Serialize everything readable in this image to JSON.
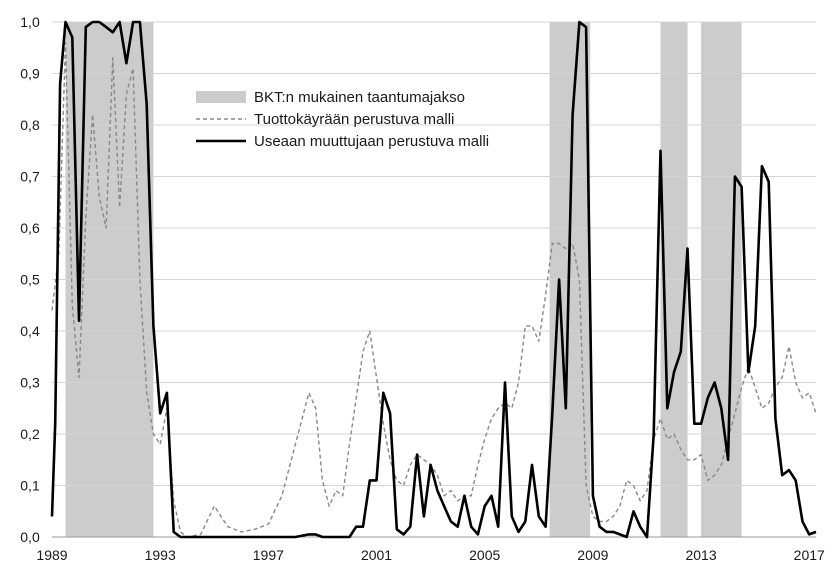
{
  "chart_data": {
    "type": "line",
    "title": "",
    "xlabel": "",
    "ylabel": "",
    "xlim": [
      1989,
      2017.25
    ],
    "ylim": [
      0,
      1
    ],
    "x_ticks": [
      1989,
      1993,
      1997,
      2001,
      2005,
      2009,
      2013,
      2017
    ],
    "y_ticks": [
      0,
      0.1,
      0.2,
      0.3,
      0.4,
      0.5,
      0.6,
      0.7,
      0.8,
      0.9,
      1.0
    ],
    "y_tick_labels": [
      "0,0",
      "0,1",
      "0,2",
      "0,3",
      "0,4",
      "0,5",
      "0,6",
      "0,7",
      "0,8",
      "0,9",
      "1,0"
    ],
    "grid": "horizontal",
    "legend_position": "upper-center",
    "recessions": {
      "name": "BKT:n mukainen taantumajakso",
      "color": "#cccccc",
      "periods": [
        [
          1989.5,
          1992.75
        ],
        [
          2007.4,
          2008.9
        ],
        [
          2011.5,
          2012.5
        ],
        [
          2013.0,
          2014.5
        ]
      ]
    },
    "series": [
      {
        "name": "Tuottokäyrään perustuva malli",
        "color": "#888888",
        "style": "dashed",
        "points": [
          [
            1989.0,
            0.44
          ],
          [
            1989.25,
            0.55
          ],
          [
            1989.5,
            0.96
          ],
          [
            1989.75,
            0.45
          ],
          [
            1990.0,
            0.31
          ],
          [
            1990.25,
            0.62
          ],
          [
            1990.5,
            0.82
          ],
          [
            1990.75,
            0.66
          ],
          [
            1991.0,
            0.6
          ],
          [
            1991.25,
            0.93
          ],
          [
            1991.5,
            0.64
          ],
          [
            1991.75,
            0.86
          ],
          [
            1992.0,
            0.91
          ],
          [
            1992.25,
            0.5
          ],
          [
            1992.5,
            0.28
          ],
          [
            1992.75,
            0.2
          ],
          [
            1993.0,
            0.18
          ],
          [
            1993.25,
            0.25
          ],
          [
            1993.5,
            0.07
          ],
          [
            1993.75,
            0.01
          ],
          [
            1994.0,
            0.0
          ],
          [
            1994.5,
            0.005
          ],
          [
            1995.0,
            0.06
          ],
          [
            1995.5,
            0.02
          ],
          [
            1996.0,
            0.01
          ],
          [
            1996.5,
            0.015
          ],
          [
            1997.0,
            0.025
          ],
          [
            1997.5,
            0.08
          ],
          [
            1998.0,
            0.18
          ],
          [
            1998.5,
            0.28
          ],
          [
            1998.75,
            0.25
          ],
          [
            1999.0,
            0.11
          ],
          [
            1999.25,
            0.06
          ],
          [
            1999.5,
            0.09
          ],
          [
            1999.75,
            0.08
          ],
          [
            2000.0,
            0.18
          ],
          [
            2000.5,
            0.36
          ],
          [
            2000.75,
            0.4
          ],
          [
            2001.0,
            0.31
          ],
          [
            2001.25,
            0.22
          ],
          [
            2001.5,
            0.15
          ],
          [
            2001.75,
            0.11
          ],
          [
            2002.0,
            0.1
          ],
          [
            2002.25,
            0.14
          ],
          [
            2002.5,
            0.16
          ],
          [
            2002.75,
            0.15
          ],
          [
            2003.0,
            0.14
          ],
          [
            2003.25,
            0.12
          ],
          [
            2003.5,
            0.08
          ],
          [
            2003.75,
            0.09
          ],
          [
            2004.0,
            0.07
          ],
          [
            2004.25,
            0.08
          ],
          [
            2004.5,
            0.08
          ],
          [
            2004.75,
            0.14
          ],
          [
            2005.0,
            0.19
          ],
          [
            2005.25,
            0.23
          ],
          [
            2005.5,
            0.25
          ],
          [
            2005.75,
            0.26
          ],
          [
            2006.0,
            0.25
          ],
          [
            2006.25,
            0.3
          ],
          [
            2006.5,
            0.41
          ],
          [
            2006.75,
            0.41
          ],
          [
            2007.0,
            0.38
          ],
          [
            2007.25,
            0.47
          ],
          [
            2007.5,
            0.57
          ],
          [
            2007.75,
            0.57
          ],
          [
            2008.0,
            0.56
          ],
          [
            2008.25,
            0.57
          ],
          [
            2008.5,
            0.5
          ],
          [
            2008.75,
            0.1
          ],
          [
            2009.0,
            0.04
          ],
          [
            2009.25,
            0.03
          ],
          [
            2009.5,
            0.03
          ],
          [
            2009.75,
            0.04
          ],
          [
            2010.0,
            0.06
          ],
          [
            2010.25,
            0.11
          ],
          [
            2010.5,
            0.1
          ],
          [
            2010.75,
            0.07
          ],
          [
            2011.0,
            0.09
          ],
          [
            2011.25,
            0.19
          ],
          [
            2011.5,
            0.23
          ],
          [
            2011.75,
            0.19
          ],
          [
            2012.0,
            0.2
          ],
          [
            2012.25,
            0.17
          ],
          [
            2012.5,
            0.15
          ],
          [
            2012.75,
            0.15
          ],
          [
            2013.0,
            0.16
          ],
          [
            2013.25,
            0.11
          ],
          [
            2013.5,
            0.12
          ],
          [
            2013.75,
            0.14
          ],
          [
            2014.0,
            0.19
          ],
          [
            2014.25,
            0.24
          ],
          [
            2014.5,
            0.29
          ],
          [
            2014.75,
            0.33
          ],
          [
            2015.0,
            0.29
          ],
          [
            2015.25,
            0.25
          ],
          [
            2015.5,
            0.26
          ],
          [
            2015.75,
            0.29
          ],
          [
            2016.0,
            0.31
          ],
          [
            2016.25,
            0.37
          ],
          [
            2016.5,
            0.3
          ],
          [
            2016.75,
            0.27
          ],
          [
            2017.0,
            0.28
          ],
          [
            2017.25,
            0.24
          ]
        ]
      },
      {
        "name": "Useaan muuttujaan perustuva malli",
        "color": "#000000",
        "style": "solid",
        "points": [
          [
            1989.0,
            0.04
          ],
          [
            1989.12,
            0.22
          ],
          [
            1989.3,
            0.88
          ],
          [
            1989.5,
            1.0
          ],
          [
            1989.75,
            0.97
          ],
          [
            1990.0,
            0.42
          ],
          [
            1990.25,
            0.99
          ],
          [
            1990.5,
            1.0
          ],
          [
            1990.75,
            1.0
          ],
          [
            1991.0,
            0.99
          ],
          [
            1991.25,
            0.98
          ],
          [
            1991.5,
            1.0
          ],
          [
            1991.75,
            0.92
          ],
          [
            1992.0,
            1.0
          ],
          [
            1992.25,
            1.0
          ],
          [
            1992.5,
            0.84
          ],
          [
            1992.75,
            0.41
          ],
          [
            1993.0,
            0.24
          ],
          [
            1993.25,
            0.28
          ],
          [
            1993.5,
            0.01
          ],
          [
            1993.75,
            0.0
          ],
          [
            1994.0,
            0.0
          ],
          [
            1995.0,
            0.0
          ],
          [
            1996.0,
            0.0
          ],
          [
            1997.0,
            0.0
          ],
          [
            1998.0,
            0.0
          ],
          [
            1998.5,
            0.005
          ],
          [
            1998.75,
            0.005
          ],
          [
            1999.0,
            0.0
          ],
          [
            1999.5,
            0.0
          ],
          [
            2000.0,
            0.0
          ],
          [
            2000.25,
            0.02
          ],
          [
            2000.5,
            0.02
          ],
          [
            2000.75,
            0.11
          ],
          [
            2001.0,
            0.11
          ],
          [
            2001.25,
            0.28
          ],
          [
            2001.5,
            0.24
          ],
          [
            2001.75,
            0.015
          ],
          [
            2002.0,
            0.005
          ],
          [
            2002.25,
            0.02
          ],
          [
            2002.5,
            0.16
          ],
          [
            2002.75,
            0.04
          ],
          [
            2003.0,
            0.14
          ],
          [
            2003.25,
            0.09
          ],
          [
            2003.5,
            0.06
          ],
          [
            2003.75,
            0.03
          ],
          [
            2004.0,
            0.02
          ],
          [
            2004.25,
            0.08
          ],
          [
            2004.5,
            0.02
          ],
          [
            2004.75,
            0.005
          ],
          [
            2005.0,
            0.06
          ],
          [
            2005.25,
            0.08
          ],
          [
            2005.5,
            0.02
          ],
          [
            2005.75,
            0.3
          ],
          [
            2006.0,
            0.04
          ],
          [
            2006.25,
            0.01
          ],
          [
            2006.5,
            0.03
          ],
          [
            2006.75,
            0.14
          ],
          [
            2007.0,
            0.04
          ],
          [
            2007.25,
            0.02
          ],
          [
            2007.5,
            0.24
          ],
          [
            2007.75,
            0.5
          ],
          [
            2008.0,
            0.25
          ],
          [
            2008.25,
            0.82
          ],
          [
            2008.5,
            1.0
          ],
          [
            2008.75,
            0.99
          ],
          [
            2009.0,
            0.08
          ],
          [
            2009.25,
            0.02
          ],
          [
            2009.5,
            0.01
          ],
          [
            2009.75,
            0.01
          ],
          [
            2010.0,
            0.005
          ],
          [
            2010.25,
            0.0
          ],
          [
            2010.5,
            0.05
          ],
          [
            2010.75,
            0.02
          ],
          [
            2011.0,
            0.0
          ],
          [
            2011.25,
            0.2
          ],
          [
            2011.5,
            0.75
          ],
          [
            2011.75,
            0.25
          ],
          [
            2012.0,
            0.32
          ],
          [
            2012.25,
            0.36
          ],
          [
            2012.5,
            0.56
          ],
          [
            2012.75,
            0.22
          ],
          [
            2013.0,
            0.22
          ],
          [
            2013.25,
            0.27
          ],
          [
            2013.5,
            0.3
          ],
          [
            2013.75,
            0.25
          ],
          [
            2014.0,
            0.15
          ],
          [
            2014.25,
            0.7
          ],
          [
            2014.5,
            0.68
          ],
          [
            2014.75,
            0.32
          ],
          [
            2015.0,
            0.41
          ],
          [
            2015.25,
            0.72
          ],
          [
            2015.5,
            0.69
          ],
          [
            2015.75,
            0.23
          ],
          [
            2016.0,
            0.12
          ],
          [
            2016.25,
            0.13
          ],
          [
            2016.5,
            0.11
          ],
          [
            2016.75,
            0.03
          ],
          [
            2017.0,
            0.005
          ],
          [
            2017.25,
            0.01
          ]
        ]
      }
    ],
    "legend": [
      {
        "label": "BKT:n mukainen taantumajakso",
        "kind": "patch",
        "color": "#cccccc"
      },
      {
        "label": "Tuottokäyrään perustuva malli",
        "kind": "dashed",
        "color": "#888888"
      },
      {
        "label": "Useaan muuttujaan perustuva malli",
        "kind": "solid",
        "color": "#000000"
      }
    ]
  }
}
